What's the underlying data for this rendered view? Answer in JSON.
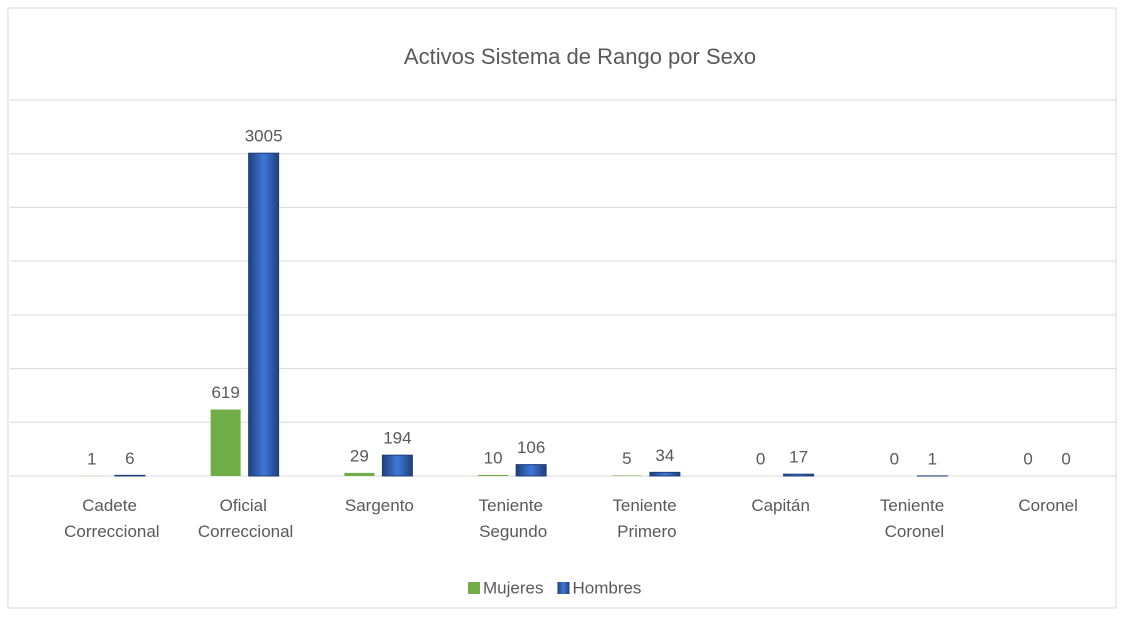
{
  "chart_data": {
    "type": "bar",
    "title": "Activos Sistema de Rango por Sexo",
    "categories": [
      "Cadete Correccional",
      "Oficial Correccional",
      "Sargento",
      "Teniente Segundo",
      "Teniente Primero",
      "Capitán",
      "Teniente Coronel",
      "Coronel"
    ],
    "series": [
      {
        "name": "Mujeres",
        "color": "#70ad47",
        "values": [
          1,
          619,
          29,
          10,
          5,
          0,
          0,
          0
        ]
      },
      {
        "name": "Hombres",
        "color": "#2e5fb8",
        "values": [
          6,
          3005,
          194,
          106,
          34,
          17,
          1,
          0
        ]
      }
    ],
    "ylim": [
      0,
      3500
    ],
    "yticks": [
      0,
      500,
      1000,
      1500,
      2000,
      2500,
      3000,
      3500
    ],
    "grid": true,
    "legend": "bottom"
  }
}
